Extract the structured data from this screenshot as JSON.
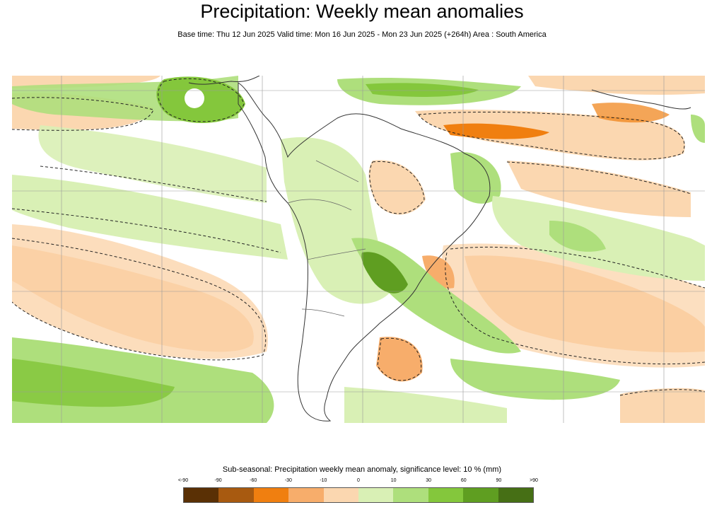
{
  "header": {
    "title": "Precipitation: Weekly mean anomalies",
    "subtitle": "Base time: Thu 12 Jun 2025 Valid time: Mon 16 Jun 2025 - Mon 23 Jun 2025 (+264h) Area : South America"
  },
  "legend": {
    "title": "Sub-seasonal: Precipitation weekly mean anomaly, significance level: 10 % (mm)",
    "ticks": [
      "<-90",
      "-90",
      "-60",
      "-30",
      "-10",
      "0",
      "10",
      "30",
      "60",
      "90",
      ">90"
    ],
    "colors": [
      "#5a3005",
      "#a85a10",
      "#f07f10",
      "#f7ad6b",
      "#fbd7b0",
      "#ffffff",
      "#d9f0b5",
      "#aedf7c",
      "#84c73c",
      "#5f9e21",
      "#466f15"
    ]
  },
  "map": {
    "region": "South America",
    "colors": {
      "strong_dry": "#f07f10",
      "dry": "#f7ad6b",
      "light_dry": "#fbd7b0",
      "light_wet": "#d9f0b5",
      "wet": "#aedf7c",
      "strong_wet": "#84c73c",
      "very_wet": "#5f9e21",
      "coast": "#333333",
      "grid": "#999999"
    }
  }
}
